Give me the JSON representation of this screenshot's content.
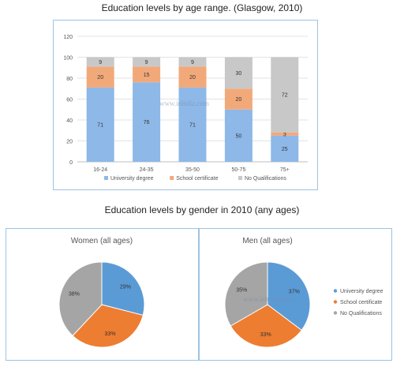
{
  "titles": {
    "bar": "Education levels by age range. (Glasgow, 2010)",
    "pies": "Education levels by gender in 2010 (any ages)"
  },
  "watermark": "www.ieltsliz.com",
  "colors": {
    "university": "#8db8e8",
    "school": "#f2a97a",
    "none": "#c8c8c8",
    "pie_university": "#5b9bd5",
    "pie_school": "#ed7d31",
    "pie_none": "#a5a5a5"
  },
  "chart_data": [
    {
      "type": "bar",
      "stacked": true,
      "categories": [
        "16-24",
        "24-35",
        "35-50",
        "50-75",
        "75+"
      ],
      "series": [
        {
          "name": "University degree",
          "values": [
            71,
            76,
            71,
            50,
            25
          ]
        },
        {
          "name": "School certificate",
          "values": [
            20,
            15,
            20,
            20,
            3
          ]
        },
        {
          "name": "No Qualifications",
          "values": [
            9,
            9,
            9,
            30,
            72
          ]
        }
      ],
      "ylim": [
        0,
        120
      ],
      "yticks": [
        0,
        20,
        40,
        60,
        80,
        100,
        120
      ],
      "legend": "bottom"
    },
    {
      "type": "pie",
      "title": "Women (all ages)",
      "labels": [
        "University degree",
        "School certificate",
        "No Qualifications"
      ],
      "values": [
        29,
        33,
        38
      ],
      "value_labels": [
        "29%",
        "33%",
        "38%"
      ]
    },
    {
      "type": "pie",
      "title": "Men (all ages)",
      "labels": [
        "University degree",
        "School certificate",
        "No Qualifications"
      ],
      "values": [
        37,
        33,
        35
      ],
      "value_labels": [
        "37%",
        "33%",
        "35%"
      ],
      "legend": "right"
    }
  ]
}
